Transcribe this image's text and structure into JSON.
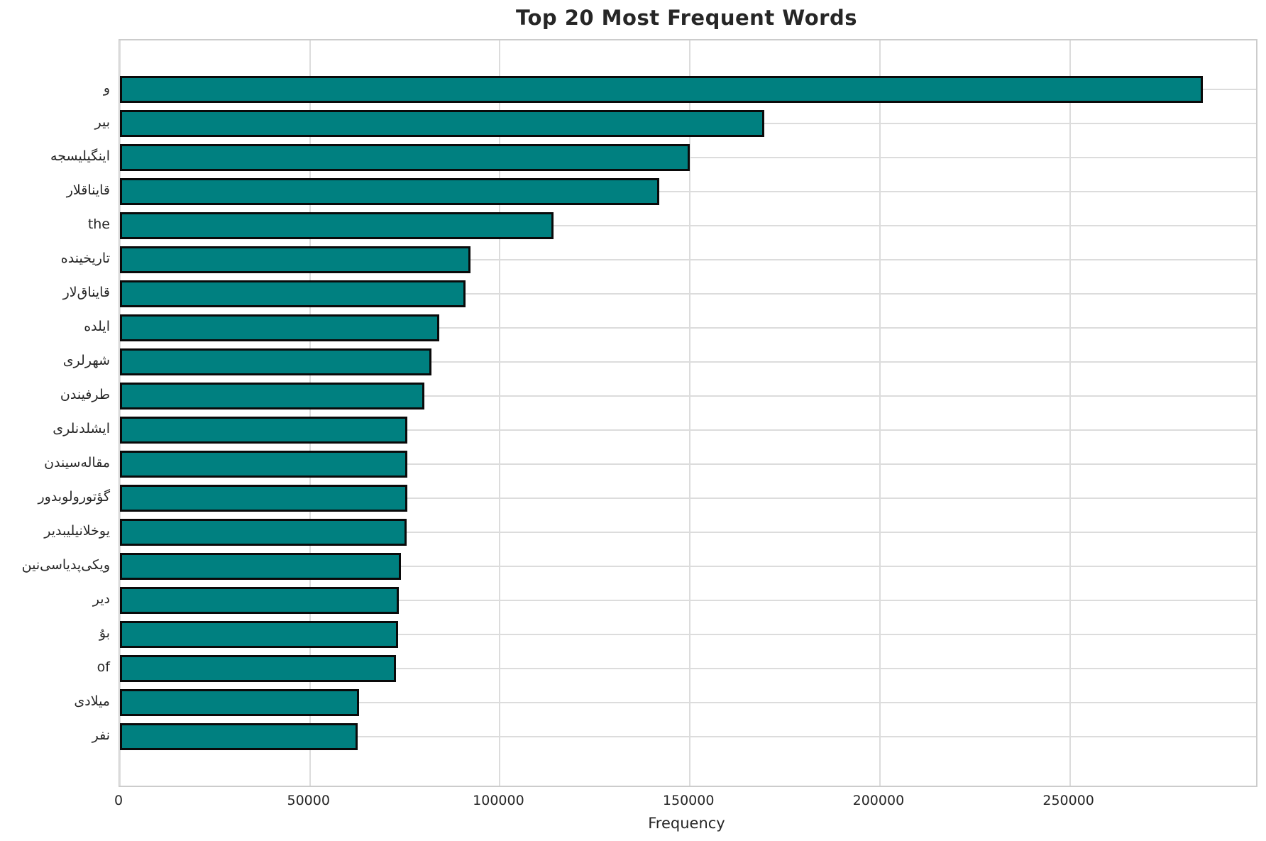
{
  "chart_data": {
    "type": "bar",
    "orientation": "horizontal",
    "title": "Top 20 Most Frequent Words",
    "xlabel": "Frequency",
    "ylabel": "",
    "categories": [
      "و",
      "بیر",
      "اینگیلیسجه",
      "قایناقلار",
      "the",
      "تاریخینده",
      "قایناق‌لار",
      "ایلده",
      "شهرلری",
      "طرفیندن",
      "ایشلدنلری",
      "مقاله‌سیندن",
      "گؤتورولوبدور",
      "یوخلانیلیبدیر",
      "ویکی‌پدیاسی‌نین",
      "دیر",
      "بۇ",
      "of",
      "میلادی",
      "نفر"
    ],
    "values": [
      285000,
      169500,
      150000,
      142000,
      114200,
      92200,
      91000,
      84000,
      82000,
      80200,
      75700,
      75600,
      75600,
      75500,
      74000,
      73400,
      73300,
      72600,
      63000,
      62600
    ],
    "xticks": [
      0,
      50000,
      100000,
      150000,
      200000,
      250000
    ],
    "xlim": [
      0,
      299000
    ],
    "grid": true,
    "legend": "none",
    "bar_color": "#008080",
    "bar_edge_color": "#0a0a0a",
    "grid_color": "#dcdcdc",
    "text_color": "#262626"
  }
}
